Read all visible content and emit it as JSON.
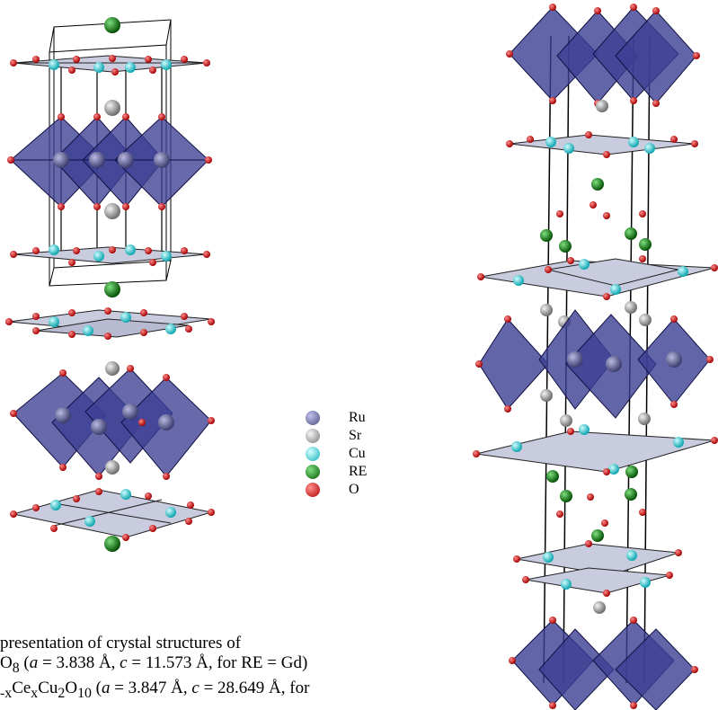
{
  "legend": {
    "items": [
      {
        "label": "Ru",
        "color": "#5f5f90"
      },
      {
        "label": "Sr",
        "color": "#9c9c9c"
      },
      {
        "label": "Cu",
        "color": "#2fd0d8"
      },
      {
        "label": "RE",
        "color": "#138a13"
      },
      {
        "label": "O",
        "color": "#e20000"
      }
    ]
  },
  "caption": {
    "line1": "presentation of crystal structures of",
    "line2_prefix": "O",
    "line2_sub": "8",
    "line2_a_label": "a",
    "line2_a_value": " = 3.838 Å, ",
    "line2_c_label": "c",
    "line2_c_value": " = 11.573 Å, for RE = Gd)",
    "line3_text1": "-x",
    "line3_text2": "Ce",
    "line3_sub2": "x",
    "line3_text3": "Cu",
    "line3_sub3": "2",
    "line3_text4": "O",
    "line3_sub4": "10",
    "line3_a_label": "a",
    "line3_a_value": " = 3.847 Å, ",
    "line3_c_label": "c",
    "line3_c_value": " = 28.649 Å, for"
  },
  "colors": {
    "octahedron_fill": "#3c3f94",
    "octahedron_edge": "#111144",
    "plane_fill": "#c9cbdf",
    "ru": "#5f5f90",
    "sr": "#9c9c9c",
    "cu": "#2fd0d8",
    "re": "#138a13",
    "o": "#e20000"
  }
}
